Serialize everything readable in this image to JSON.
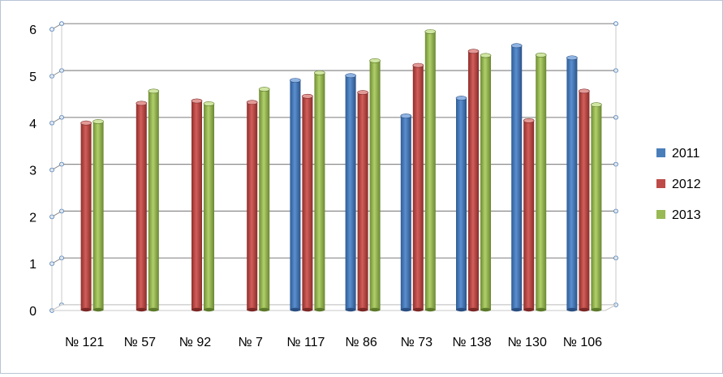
{
  "chart_data": {
    "type": "bar",
    "categories": [
      "№ 121",
      "№ 57",
      "№ 92",
      "№ 7",
      "№ 117",
      "№ 86",
      "№ 73",
      "№ 138",
      "№ 130",
      "№ 106"
    ],
    "series": [
      {
        "name": "2011",
        "color": "#4a7ebb",
        "values": [
          null,
          null,
          null,
          null,
          4.86,
          4.96,
          4.1,
          4.48,
          5.6,
          5.34
        ]
      },
      {
        "name": "2012",
        "color": "#be4b48",
        "values": [
          3.95,
          4.37,
          4.42,
          4.39,
          4.52,
          4.6,
          5.18,
          5.48,
          4.0,
          4.63
        ]
      },
      {
        "name": "2013",
        "color": "#98b954",
        "values": [
          3.98,
          4.63,
          4.36,
          4.67,
          5.02,
          5.28,
          5.9,
          5.39,
          5.4,
          4.34
        ]
      }
    ],
    "yticks": [
      "0",
      "1",
      "2",
      "3",
      "4",
      "5",
      "6"
    ],
    "ylim": [
      0,
      6
    ],
    "grid": true,
    "legend_position": "right",
    "title": "",
    "xlabel": "",
    "ylabel": ""
  }
}
